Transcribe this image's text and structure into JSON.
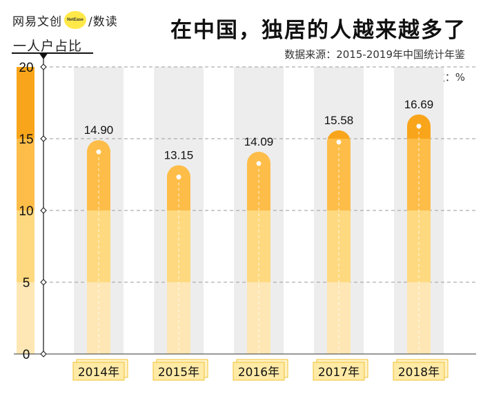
{
  "header": {
    "brand_left": "网易文创",
    "brand_badge": "NetEase",
    "brand_right": "/数读",
    "title": "在中国，独居的人越来越多了",
    "ylabel": "一人户占比",
    "source": "数据来源：2015-2019年中国统计年鉴",
    "unit": "单位：%"
  },
  "chart_data": {
    "type": "bar",
    "title": "在中国，独居的人越来越多了",
    "ylabel": "一人户占比",
    "xlabel": "",
    "categories": [
      "2014年",
      "2015年",
      "2016年",
      "2017年",
      "2018年"
    ],
    "values": [
      14.9,
      13.15,
      14.09,
      15.58,
      16.69
    ],
    "value_labels": [
      "14.90",
      "13.15",
      "14.09",
      "15.58",
      "16.69"
    ],
    "yticks": [
      0,
      5,
      10,
      15,
      20
    ],
    "ylim": [
      0,
      20
    ],
    "grid": true,
    "colors": {
      "band_0_5": "#fee7b4",
      "band_5_10": "#fed97f",
      "band_10_15": "#fdbd48",
      "band_15_20": "#f9a51b",
      "column_bg": "#ededed",
      "label_box": "#ffeaa6",
      "label_box_border": "#f2c230"
    }
  }
}
